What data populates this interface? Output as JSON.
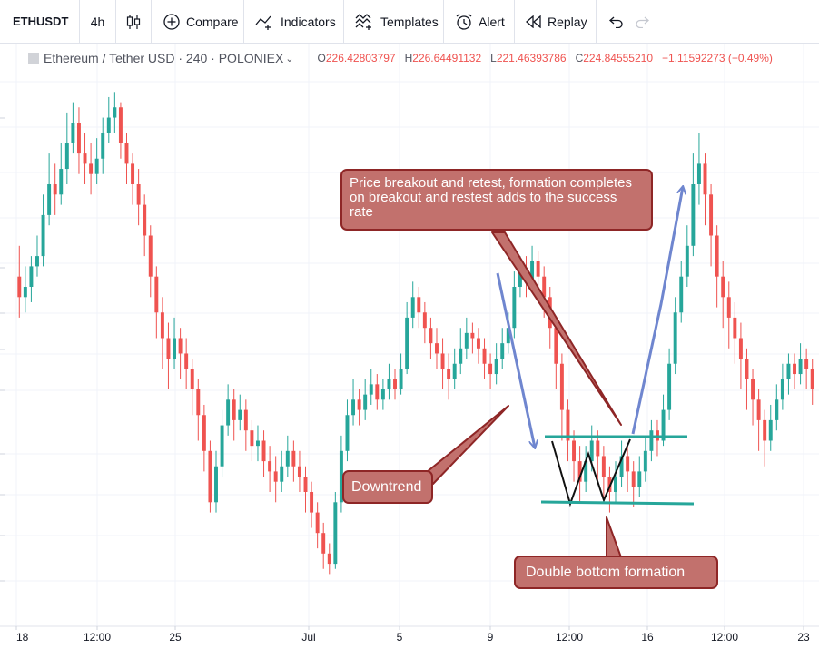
{
  "toolbar": {
    "symbol": "ETHUSDT",
    "interval": "4h",
    "compare_label": "Compare",
    "indicators_label": "Indicators",
    "templates_label": "Templates",
    "alert_label": "Alert",
    "replay_label": "Replay"
  },
  "legend": {
    "symbol_text": "Ethereum / Tether USD · 240 · POLONIEX",
    "open_label": "O",
    "open": "226.42803797",
    "high_label": "H",
    "high": "226.64491132",
    "low_label": "L",
    "low": "221.46393786",
    "close_label": "C",
    "close": "224.84555210",
    "change": "−1.11592273 (−0.49%)"
  },
  "annotations": {
    "breakout": "Price breakout and retest, formation completes on breakout and restest adds to the success rate",
    "downtrend": "Downtrend",
    "double_bottom": "Double bottom formation"
  },
  "colors": {
    "up": "#26a69a",
    "down": "#ef5350",
    "arrow": "#6f86cf",
    "level_line": "#26a69a",
    "callout_fill": "#c2716d",
    "callout_border": "#8e2626"
  },
  "chart_data": {
    "type": "candlestick",
    "x_tick_labels": [
      "18",
      "12:00",
      "25",
      "Jul",
      "5",
      "9",
      "12:00",
      "16",
      "12:00",
      "23"
    ],
    "y_tick_labels": [],
    "grid": true,
    "value_scale": "relative (no price scale visible)",
    "candles": [
      [
        0.62,
        0.58,
        0.68,
        0.54
      ],
      [
        0.58,
        0.6,
        0.64,
        0.55
      ],
      [
        0.6,
        0.64,
        0.66,
        0.57
      ],
      [
        0.64,
        0.66,
        0.7,
        0.62
      ],
      [
        0.66,
        0.74,
        0.78,
        0.64
      ],
      [
        0.74,
        0.8,
        0.86,
        0.72
      ],
      [
        0.8,
        0.78,
        0.84,
        0.74
      ],
      [
        0.78,
        0.83,
        0.88,
        0.76
      ],
      [
        0.83,
        0.88,
        0.94,
        0.8
      ],
      [
        0.88,
        0.92,
        0.96,
        0.86
      ],
      [
        0.92,
        0.86,
        0.95,
        0.82
      ],
      [
        0.86,
        0.84,
        0.9,
        0.8
      ],
      [
        0.84,
        0.82,
        0.88,
        0.78
      ],
      [
        0.82,
        0.85,
        0.89,
        0.8
      ],
      [
        0.85,
        0.9,
        0.93,
        0.82
      ],
      [
        0.9,
        0.93,
        0.97,
        0.88
      ],
      [
        0.93,
        0.95,
        0.98,
        0.9
      ],
      [
        0.95,
        0.88,
        0.96,
        0.85
      ],
      [
        0.88,
        0.84,
        0.9,
        0.8
      ],
      [
        0.84,
        0.8,
        0.86,
        0.76
      ],
      [
        0.8,
        0.76,
        0.83,
        0.72
      ],
      [
        0.76,
        0.7,
        0.78,
        0.66
      ],
      [
        0.7,
        0.62,
        0.72,
        0.58
      ],
      [
        0.62,
        0.55,
        0.64,
        0.5
      ],
      [
        0.55,
        0.5,
        0.58,
        0.44
      ],
      [
        0.5,
        0.46,
        0.53,
        0.4
      ],
      [
        0.46,
        0.5,
        0.54,
        0.44
      ],
      [
        0.5,
        0.47,
        0.52,
        0.42
      ],
      [
        0.47,
        0.44,
        0.5,
        0.4
      ],
      [
        0.44,
        0.4,
        0.46,
        0.35
      ],
      [
        0.4,
        0.35,
        0.42,
        0.3
      ],
      [
        0.35,
        0.28,
        0.37,
        0.24
      ],
      [
        0.28,
        0.18,
        0.3,
        0.16
      ],
      [
        0.18,
        0.25,
        0.28,
        0.16
      ],
      [
        0.25,
        0.33,
        0.36,
        0.23
      ],
      [
        0.33,
        0.38,
        0.41,
        0.31
      ],
      [
        0.38,
        0.34,
        0.4,
        0.3
      ],
      [
        0.34,
        0.36,
        0.39,
        0.32
      ],
      [
        0.36,
        0.32,
        0.38,
        0.28
      ],
      [
        0.32,
        0.29,
        0.34,
        0.26
      ],
      [
        0.29,
        0.3,
        0.33,
        0.26
      ],
      [
        0.3,
        0.26,
        0.32,
        0.23
      ],
      [
        0.26,
        0.24,
        0.29,
        0.2
      ],
      [
        0.24,
        0.22,
        0.27,
        0.18
      ],
      [
        0.22,
        0.25,
        0.28,
        0.2
      ],
      [
        0.25,
        0.28,
        0.31,
        0.23
      ],
      [
        0.28,
        0.25,
        0.3,
        0.22
      ],
      [
        0.25,
        0.23,
        0.28,
        0.2
      ],
      [
        0.23,
        0.2,
        0.25,
        0.16
      ],
      [
        0.2,
        0.16,
        0.22,
        0.13
      ],
      [
        0.16,
        0.12,
        0.18,
        0.09
      ],
      [
        0.12,
        0.08,
        0.14,
        0.05
      ],
      [
        0.08,
        0.06,
        0.1,
        0.04
      ],
      [
        0.06,
        0.18,
        0.2,
        0.05
      ],
      [
        0.18,
        0.28,
        0.31,
        0.16
      ],
      [
        0.28,
        0.35,
        0.38,
        0.26
      ],
      [
        0.35,
        0.38,
        0.42,
        0.33
      ],
      [
        0.38,
        0.36,
        0.4,
        0.33
      ],
      [
        0.36,
        0.39,
        0.42,
        0.34
      ],
      [
        0.39,
        0.41,
        0.44,
        0.37
      ],
      [
        0.41,
        0.38,
        0.43,
        0.36
      ],
      [
        0.38,
        0.4,
        0.42,
        0.36
      ],
      [
        0.4,
        0.42,
        0.45,
        0.38
      ],
      [
        0.42,
        0.4,
        0.44,
        0.38
      ],
      [
        0.4,
        0.44,
        0.47,
        0.39
      ],
      [
        0.44,
        0.54,
        0.57,
        0.43
      ],
      [
        0.54,
        0.58,
        0.61,
        0.52
      ],
      [
        0.58,
        0.55,
        0.6,
        0.52
      ],
      [
        0.55,
        0.52,
        0.57,
        0.49
      ],
      [
        0.52,
        0.49,
        0.54,
        0.46
      ],
      [
        0.49,
        0.47,
        0.52,
        0.44
      ],
      [
        0.47,
        0.44,
        0.5,
        0.4
      ],
      [
        0.44,
        0.42,
        0.47,
        0.38
      ],
      [
        0.42,
        0.45,
        0.48,
        0.4
      ],
      [
        0.45,
        0.48,
        0.52,
        0.43
      ],
      [
        0.48,
        0.51,
        0.54,
        0.46
      ],
      [
        0.51,
        0.5,
        0.53,
        0.47
      ],
      [
        0.5,
        0.48,
        0.52,
        0.45
      ],
      [
        0.48,
        0.45,
        0.5,
        0.42
      ],
      [
        0.45,
        0.43,
        0.47,
        0.4
      ],
      [
        0.43,
        0.46,
        0.49,
        0.41
      ],
      [
        0.46,
        0.49,
        0.52,
        0.44
      ],
      [
        0.49,
        0.52,
        0.55,
        0.47
      ],
      [
        0.52,
        0.6,
        0.63,
        0.5
      ],
      [
        0.6,
        0.63,
        0.66,
        0.58
      ],
      [
        0.63,
        0.61,
        0.66,
        0.58
      ],
      [
        0.61,
        0.65,
        0.68,
        0.59
      ],
      [
        0.65,
        0.62,
        0.67,
        0.58
      ],
      [
        0.62,
        0.58,
        0.64,
        0.54
      ],
      [
        0.58,
        0.52,
        0.6,
        0.48
      ],
      [
        0.52,
        0.45,
        0.54,
        0.4
      ],
      [
        0.45,
        0.36,
        0.47,
        0.3
      ],
      [
        0.36,
        0.3,
        0.38,
        0.26
      ],
      [
        0.3,
        0.26,
        0.32,
        0.22
      ],
      [
        0.26,
        0.22,
        0.29,
        0.18
      ],
      [
        0.22,
        0.26,
        0.29,
        0.2
      ],
      [
        0.26,
        0.3,
        0.33,
        0.24
      ],
      [
        0.3,
        0.27,
        0.32,
        0.22
      ],
      [
        0.27,
        0.23,
        0.29,
        0.19
      ],
      [
        0.23,
        0.2,
        0.25,
        0.16
      ],
      [
        0.2,
        0.23,
        0.26,
        0.18
      ],
      [
        0.23,
        0.27,
        0.3,
        0.21
      ],
      [
        0.27,
        0.24,
        0.29,
        0.2
      ],
      [
        0.24,
        0.21,
        0.26,
        0.17
      ],
      [
        0.21,
        0.24,
        0.27,
        0.19
      ],
      [
        0.24,
        0.28,
        0.31,
        0.22
      ],
      [
        0.28,
        0.32,
        0.34,
        0.26
      ],
      [
        0.32,
        0.3,
        0.34,
        0.27
      ],
      [
        0.3,
        0.36,
        0.39,
        0.29
      ],
      [
        0.36,
        0.45,
        0.48,
        0.34
      ],
      [
        0.45,
        0.55,
        0.58,
        0.43
      ],
      [
        0.55,
        0.62,
        0.65,
        0.53
      ],
      [
        0.62,
        0.68,
        0.72,
        0.6
      ],
      [
        0.68,
        0.8,
        0.86,
        0.66
      ],
      [
        0.8,
        0.84,
        0.9,
        0.76
      ],
      [
        0.84,
        0.78,
        0.86,
        0.72
      ],
      [
        0.78,
        0.7,
        0.8,
        0.64
      ],
      [
        0.7,
        0.62,
        0.72,
        0.56
      ],
      [
        0.62,
        0.58,
        0.65,
        0.52
      ],
      [
        0.58,
        0.54,
        0.61,
        0.48
      ],
      [
        0.54,
        0.5,
        0.57,
        0.45
      ],
      [
        0.5,
        0.46,
        0.53,
        0.4
      ],
      [
        0.46,
        0.42,
        0.48,
        0.36
      ],
      [
        0.42,
        0.38,
        0.44,
        0.33
      ],
      [
        0.38,
        0.34,
        0.4,
        0.28
      ],
      [
        0.34,
        0.3,
        0.36,
        0.25
      ],
      [
        0.3,
        0.34,
        0.37,
        0.28
      ],
      [
        0.34,
        0.38,
        0.41,
        0.32
      ],
      [
        0.38,
        0.42,
        0.45,
        0.36
      ],
      [
        0.42,
        0.45,
        0.47,
        0.39
      ],
      [
        0.45,
        0.43,
        0.47,
        0.4
      ],
      [
        0.43,
        0.46,
        0.49,
        0.41
      ],
      [
        0.46,
        0.44,
        0.48,
        0.4
      ],
      [
        0.44,
        0.4,
        0.46,
        0.37
      ]
    ],
    "annotation_arrows": [
      {
        "name": "downtrend-arrow",
        "kind": "arrow",
        "points": [
          [
            548,
            301
          ],
          [
            589,
            493
          ]
        ]
      },
      {
        "name": "breakout-arrow",
        "kind": "arrow",
        "points": [
          [
            697,
            478
          ],
          [
            728,
            335
          ],
          [
            752,
            206
          ]
        ]
      },
      {
        "name": "double-bottom-zigzag",
        "kind": "zigzag",
        "points": [
          [
            608,
            486
          ],
          [
            628,
            555
          ],
          [
            648,
            500
          ],
          [
            665,
            551
          ],
          [
            694,
            484
          ]
        ]
      },
      {
        "name": "resistance-line",
        "kind": "level",
        "points": [
          [
            600,
            481
          ],
          [
            757,
            481
          ]
        ]
      },
      {
        "name": "support-line",
        "kind": "level",
        "points": [
          [
            596,
            553
          ],
          [
            764,
            555
          ]
        ]
      },
      {
        "name": "breakout-pointer",
        "kind": "pointer",
        "points": [
          [
            542,
            256
          ],
          [
            556,
            256
          ],
          [
            684,
            468
          ]
        ]
      },
      {
        "name": "downtrend-pointer",
        "kind": "pointer",
        "points": [
          [
            470,
            520
          ],
          [
            477,
            533
          ],
          [
            560,
            447
          ]
        ]
      },
      {
        "name": "double-pointer",
        "kind": "pointer",
        "points": [
          [
            668,
            614
          ],
          [
            684,
            614
          ],
          [
            668,
            570
          ]
        ]
      }
    ]
  }
}
